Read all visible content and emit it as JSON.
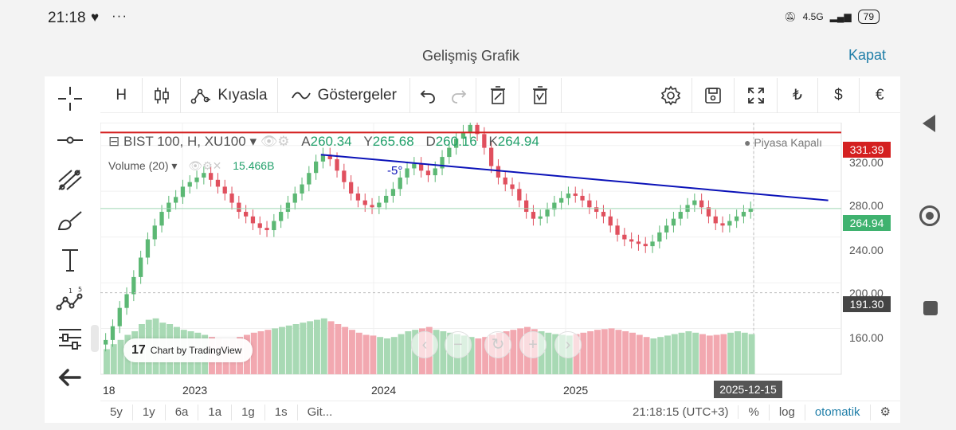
{
  "status": {
    "time": "21:18",
    "heart_icon": "heart-icon",
    "network": "4.5G",
    "battery": "79"
  },
  "header": {
    "title": "Gelişmiş Grafik",
    "close_label": "Kapat"
  },
  "left_tools": [
    {
      "name": "crosshair-icon"
    },
    {
      "name": "horizontal-line-icon"
    },
    {
      "name": "fib-tools-icon"
    },
    {
      "name": "brush-icon"
    },
    {
      "name": "text-tool-icon"
    },
    {
      "name": "pattern-icon"
    },
    {
      "name": "measure-icon"
    },
    {
      "name": "back-arrow-icon"
    }
  ],
  "toolbar": {
    "interval": "H",
    "compare_label": "Kıyasla",
    "indicators_label": "Göstergeler",
    "currency_try": "₺",
    "currency_usd": "$",
    "currency_eur": "€"
  },
  "legend": {
    "symbol": "BIST 100, H, XU100",
    "open_label": "A",
    "open": "260.34",
    "high_label": "Y",
    "high": "265.68",
    "low_label": "D",
    "low": "260.16",
    "close_label": "K",
    "close": "264.94",
    "volume_label": "Volume (20)",
    "volume_value": "15.466B",
    "market_status": "Piyasa Kapalı",
    "trendline_label": "-5°"
  },
  "price_axis": {
    "labels": [
      "320.00",
      "280.00",
      "240.00",
      "200.00",
      "160.00"
    ],
    "tag_red": "331.39",
    "tag_green": "264.94",
    "tag_gray": "191.30"
  },
  "time_axis": {
    "labels": [
      "18",
      "2023",
      "2024",
      "2025"
    ],
    "cursor_date": "2025-12-15"
  },
  "watermark": "Chart by TradingView",
  "bottombar": {
    "ranges": [
      "5y",
      "1y",
      "6a",
      "1a",
      "1g",
      "1s",
      "Git..."
    ],
    "clock": "21:18:15 (UTC+3)",
    "percent": "%",
    "log": "log",
    "auto": "otomatik"
  },
  "colors": {
    "up": "#5cb874",
    "down": "#e0505e",
    "trendline": "#0b12b8",
    "resistance": "#d42020",
    "accent": "#1f7ea8"
  },
  "chart_data": {
    "type": "candlestick",
    "symbol": "BIST 100",
    "interval": "H",
    "ylim": [
      120,
      340
    ],
    "grid": true,
    "horizontal_lines": [
      331.39,
      191.3
    ],
    "close": [
      150,
      162,
      178,
      190,
      205,
      222,
      238,
      250,
      262,
      270,
      275,
      284,
      288,
      292,
      296,
      290,
      284,
      278,
      270,
      262,
      258,
      252,
      248,
      246,
      254,
      262,
      270,
      278,
      286,
      296,
      306,
      312,
      308,
      298,
      288,
      278,
      272,
      268,
      266,
      270,
      276,
      282,
      292,
      300,
      304,
      298,
      294,
      300,
      310,
      318,
      326,
      332,
      338,
      330,
      318,
      302,
      292,
      286,
      282,
      272,
      262,
      256,
      258,
      264,
      270,
      274,
      278,
      276,
      272,
      266,
      262,
      258,
      250,
      242,
      238,
      236,
      234,
      232,
      236,
      244,
      250,
      256,
      262,
      268,
      272,
      266,
      258,
      252,
      250,
      254,
      258,
      262,
      265
    ],
    "volume": [
      0.35,
      0.42,
      0.48,
      0.55,
      0.6,
      0.7,
      0.76,
      0.78,
      0.72,
      0.7,
      0.66,
      0.62,
      0.6,
      0.58,
      0.55,
      0.52,
      0.5,
      0.48,
      0.5,
      0.52,
      0.55,
      0.58,
      0.6,
      0.62,
      0.64,
      0.66,
      0.68,
      0.7,
      0.72,
      0.74,
      0.76,
      0.78,
      0.74,
      0.7,
      0.66,
      0.62,
      0.58,
      0.55,
      0.54,
      0.52,
      0.5,
      0.52,
      0.56,
      0.6,
      0.62,
      0.64,
      0.66,
      0.62,
      0.6,
      0.58,
      0.56,
      0.54,
      0.52,
      0.5,
      0.52,
      0.55,
      0.58,
      0.6,
      0.62,
      0.64,
      0.66,
      0.63,
      0.6,
      0.58,
      0.56,
      0.55,
      0.54,
      0.56,
      0.58,
      0.6,
      0.62,
      0.63,
      0.64,
      0.62,
      0.6,
      0.58,
      0.55,
      0.52,
      0.5,
      0.52,
      0.54,
      0.56,
      0.58,
      0.6,
      0.58,
      0.56,
      0.54,
      0.55,
      0.56,
      0.58,
      0.6,
      0.58,
      0.56
    ],
    "trendline": [
      [
        31,
        312
      ],
      [
        92,
        276
      ]
    ]
  }
}
